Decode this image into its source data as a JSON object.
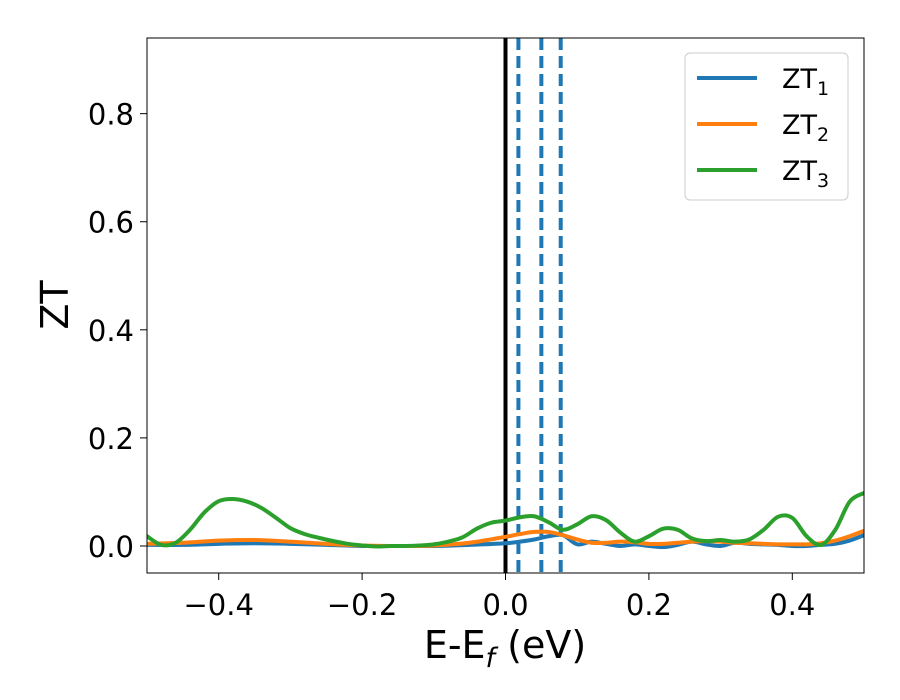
{
  "chart_data": {
    "type": "line",
    "xlabel": "E-E",
    "xlabel_sub": "f",
    "xlabel_suffix": " (eV)",
    "ylabel": "ZT",
    "xlim": [
      -0.5,
      0.5
    ],
    "ylim": [
      -0.05,
      0.94
    ],
    "xticks": [
      -0.4,
      -0.2,
      0.0,
      0.2,
      0.4
    ],
    "xtick_labels": [
      "−0.4",
      "−0.2",
      "0.0",
      "0.2",
      "0.4"
    ],
    "yticks": [
      0.0,
      0.2,
      0.4,
      0.6,
      0.8
    ],
    "ytick_labels": [
      "0.0",
      "0.2",
      "0.4",
      "0.6",
      "0.8"
    ],
    "grid": false,
    "legend_position": "top-right",
    "vlines": [
      {
        "x": 0.0,
        "color": "#000000",
        "style": "solid"
      },
      {
        "x": 0.018,
        "color": "#1f77b4",
        "style": "dashed"
      },
      {
        "x": 0.05,
        "color": "#1f77b4",
        "style": "dashed"
      },
      {
        "x": 0.077,
        "color": "#1f77b4",
        "style": "dashed"
      }
    ],
    "series": [
      {
        "name": "ZT",
        "name_sub": "1",
        "color": "#1f77b4",
        "x": [
          -0.5,
          -0.45,
          -0.4,
          -0.35,
          -0.3,
          -0.25,
          -0.2,
          -0.15,
          -0.1,
          -0.05,
          0.0,
          0.02,
          0.04,
          0.06,
          0.08,
          0.1,
          0.12,
          0.14,
          0.16,
          0.18,
          0.2,
          0.22,
          0.24,
          0.26,
          0.28,
          0.3,
          0.32,
          0.34,
          0.36,
          0.38,
          0.4,
          0.42,
          0.44,
          0.46,
          0.48,
          0.5
        ],
        "y": [
          0.002,
          0.002,
          0.004,
          0.005,
          0.004,
          0.002,
          0.0,
          0.0,
          0.0,
          0.002,
          0.005,
          0.008,
          0.012,
          0.018,
          0.02,
          0.003,
          0.008,
          0.004,
          0.0,
          0.003,
          0.0,
          -0.002,
          0.002,
          0.008,
          0.003,
          0.0,
          0.006,
          0.004,
          0.003,
          0.002,
          0.0,
          0.0,
          0.002,
          0.004,
          0.01,
          0.02
        ]
      },
      {
        "name": "ZT",
        "name_sub": "2",
        "color": "#ff7f0e",
        "x": [
          -0.5,
          -0.45,
          -0.4,
          -0.35,
          -0.3,
          -0.25,
          -0.2,
          -0.15,
          -0.1,
          -0.05,
          0.0,
          0.02,
          0.04,
          0.06,
          0.08,
          0.1,
          0.12,
          0.14,
          0.16,
          0.18,
          0.2,
          0.22,
          0.24,
          0.26,
          0.28,
          0.3,
          0.32,
          0.34,
          0.36,
          0.38,
          0.4,
          0.42,
          0.44,
          0.46,
          0.48,
          0.5
        ],
        "y": [
          0.004,
          0.006,
          0.01,
          0.011,
          0.008,
          0.004,
          0.001,
          0.0,
          0.001,
          0.006,
          0.017,
          0.022,
          0.026,
          0.026,
          0.02,
          0.012,
          0.006,
          0.006,
          0.008,
          0.007,
          0.004,
          0.004,
          0.006,
          0.008,
          0.009,
          0.008,
          0.006,
          0.005,
          0.004,
          0.003,
          0.003,
          0.003,
          0.005,
          0.01,
          0.018,
          0.028
        ]
      },
      {
        "name": "ZT",
        "name_sub": "3",
        "color": "#2ca02c",
        "x": [
          -0.5,
          -0.48,
          -0.46,
          -0.44,
          -0.42,
          -0.4,
          -0.38,
          -0.36,
          -0.34,
          -0.32,
          -0.3,
          -0.28,
          -0.26,
          -0.24,
          -0.22,
          -0.2,
          -0.18,
          -0.16,
          -0.14,
          -0.12,
          -0.1,
          -0.08,
          -0.06,
          -0.04,
          -0.02,
          0.0,
          0.02,
          0.04,
          0.06,
          0.08,
          0.1,
          0.12,
          0.14,
          0.16,
          0.18,
          0.2,
          0.22,
          0.24,
          0.26,
          0.28,
          0.3,
          0.32,
          0.34,
          0.36,
          0.38,
          0.4,
          0.42,
          0.44,
          0.46,
          0.48,
          0.5
        ],
        "y": [
          0.018,
          0.002,
          0.006,
          0.03,
          0.062,
          0.083,
          0.087,
          0.082,
          0.07,
          0.052,
          0.033,
          0.022,
          0.015,
          0.009,
          0.004,
          0.001,
          -0.001,
          0.0,
          0.0,
          0.001,
          0.003,
          0.008,
          0.016,
          0.032,
          0.043,
          0.047,
          0.053,
          0.055,
          0.044,
          0.03,
          0.04,
          0.055,
          0.048,
          0.025,
          0.008,
          0.018,
          0.032,
          0.03,
          0.014,
          0.009,
          0.011,
          0.008,
          0.012,
          0.03,
          0.054,
          0.052,
          0.018,
          0.002,
          0.03,
          0.082,
          0.098
        ]
      }
    ]
  }
}
